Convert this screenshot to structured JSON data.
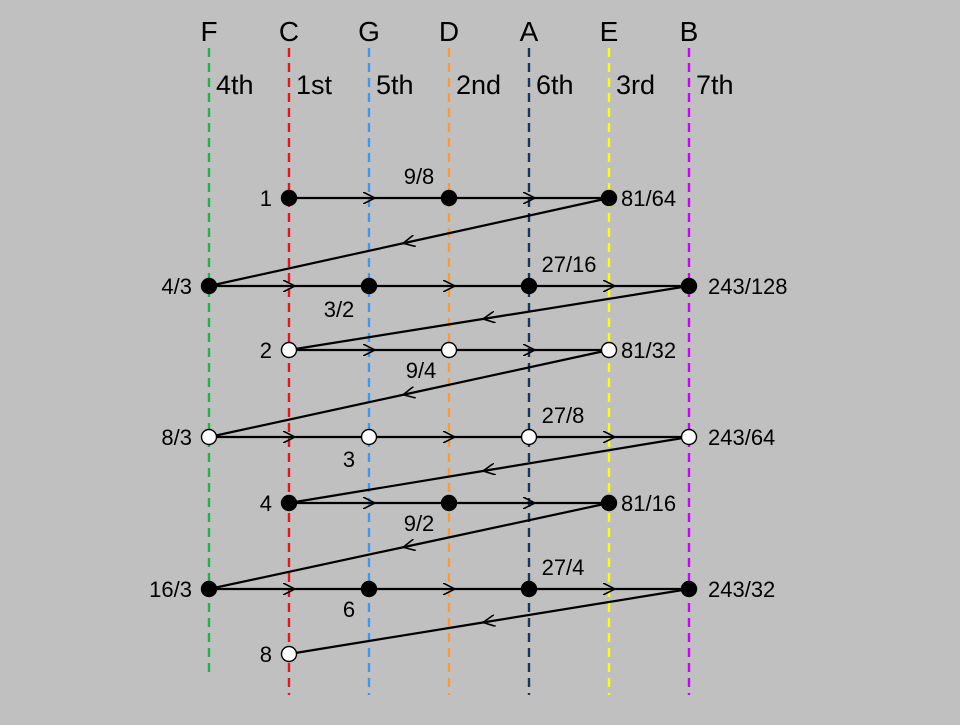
{
  "columns": [
    {
      "note": "F",
      "degree": "4th",
      "color": "#22b14c"
    },
    {
      "note": "C",
      "degree": "1st",
      "color": "#e8141c"
    },
    {
      "note": "G",
      "degree": "5th",
      "color": "#3f97f0"
    },
    {
      "note": "D",
      "degree": "2nd",
      "color": "#ff9933"
    },
    {
      "note": "A",
      "degree": "6th",
      "color": "#16365e"
    },
    {
      "note": "E",
      "degree": "3rd",
      "color": "#ffff00"
    },
    {
      "note": "B",
      "degree": "7th",
      "color": "#cc00ff"
    }
  ],
  "points": [
    {
      "ratio": "1",
      "col": "C",
      "filled": true
    },
    {
      "ratio": "9/8",
      "col": "D",
      "filled": true
    },
    {
      "ratio": "81/64",
      "col": "E",
      "filled": true
    },
    {
      "ratio": "4/3",
      "col": "F",
      "filled": true
    },
    {
      "ratio": "3/2",
      "col": "G",
      "filled": true
    },
    {
      "ratio": "27/16",
      "col": "A",
      "filled": true
    },
    {
      "ratio": "243/128",
      "col": "B",
      "filled": true
    },
    {
      "ratio": "2",
      "col": "C",
      "filled": false
    },
    {
      "ratio": "9/4",
      "col": "D",
      "filled": false
    },
    {
      "ratio": "81/32",
      "col": "E",
      "filled": false
    },
    {
      "ratio": "8/3",
      "col": "F",
      "filled": false
    },
    {
      "ratio": "3",
      "col": "G",
      "filled": false
    },
    {
      "ratio": "27/8",
      "col": "A",
      "filled": false
    },
    {
      "ratio": "243/64",
      "col": "B",
      "filled": false
    },
    {
      "ratio": "4",
      "col": "C",
      "filled": true
    },
    {
      "ratio": "9/2",
      "col": "D",
      "filled": true
    },
    {
      "ratio": "81/16",
      "col": "E",
      "filled": true
    },
    {
      "ratio": "16/3",
      "col": "F",
      "filled": true
    },
    {
      "ratio": "6",
      "col": "G",
      "filled": true
    },
    {
      "ratio": "27/4",
      "col": "A",
      "filled": true
    },
    {
      "ratio": "243/32",
      "col": "B",
      "filled": true
    },
    {
      "ratio": "8",
      "col": "C",
      "filled": false
    }
  ]
}
